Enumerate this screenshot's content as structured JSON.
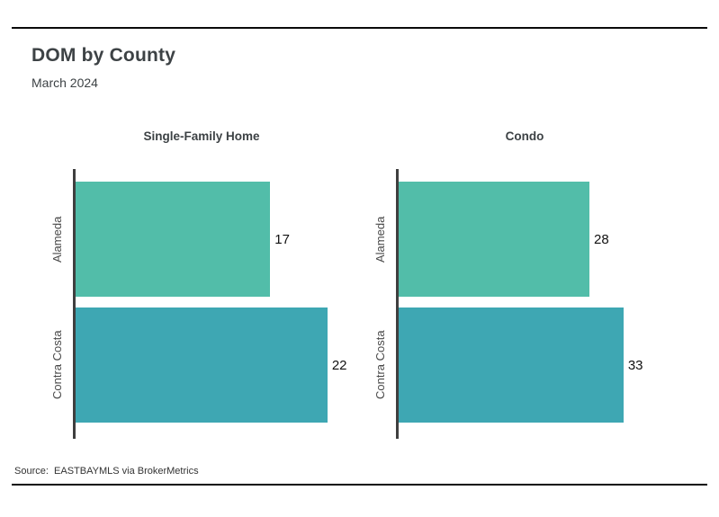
{
  "header": {
    "title": "DOM by County",
    "subtitle": "March 2024"
  },
  "footer": {
    "source": "Source:  EASTBAYMLS via BrokerMetrics"
  },
  "colors": {
    "alameda_bar": "#52BDA9",
    "contra_costa_bar": "#3EA7B3",
    "axis": "#3F3F3F",
    "rule": "#0A0A0A",
    "title_text": "#3D4245",
    "category_label_text": "#4A4A4A",
    "value_label_text": "#111111"
  },
  "chart_data": [
    {
      "type": "bar",
      "orientation": "horizontal",
      "title": "Single-Family Home",
      "categories": [
        "Alameda",
        "Contra Costa"
      ],
      "values": [
        17,
        22
      ],
      "value_labels": [
        "17",
        "22"
      ],
      "bar_colors": [
        "#52BDA9",
        "#3EA7B3"
      ],
      "xlim": [
        0,
        25
      ],
      "grid": false,
      "legend": false
    },
    {
      "type": "bar",
      "orientation": "horizontal",
      "title": "Condo",
      "categories": [
        "Alameda",
        "Contra Costa"
      ],
      "values": [
        28,
        33
      ],
      "value_labels": [
        "28",
        "33"
      ],
      "bar_colors": [
        "#52BDA9",
        "#3EA7B3"
      ],
      "xlim": [
        0,
        42
      ],
      "grid": false,
      "legend": false
    }
  ]
}
